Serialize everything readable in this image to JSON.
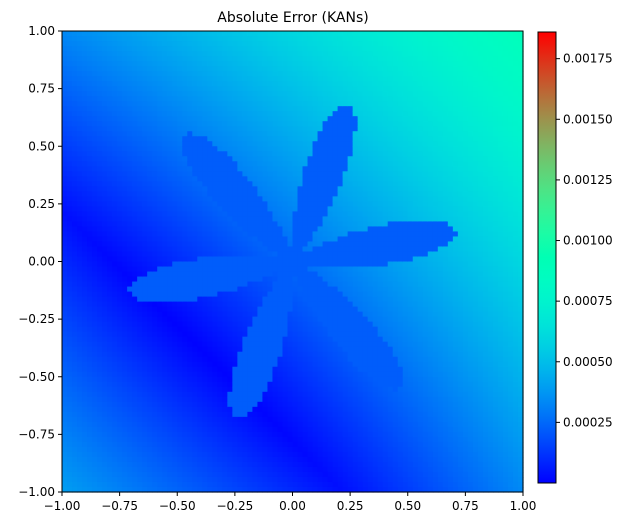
{
  "chart_data": {
    "type": "heatmap",
    "title": "Absolute Error (KANs)",
    "xlabel": "",
    "ylabel": "",
    "xlim": [
      -1.0,
      1.0
    ],
    "ylim": [
      -1.0,
      1.0
    ],
    "x_ticks": [
      "−1.00",
      "−0.75",
      "−0.50",
      "−0.25",
      "0.00",
      "0.25",
      "0.50",
      "0.75",
      "1.00"
    ],
    "y_ticks": [
      "−1.00",
      "−0.75",
      "−0.50",
      "−0.25",
      "0.00",
      "0.25",
      "0.50",
      "0.75",
      "1.00"
    ],
    "x_tick_values": [
      -1.0,
      -0.75,
      -0.5,
      -0.25,
      0.0,
      0.25,
      0.5,
      0.75,
      1.0
    ],
    "y_tick_values": [
      -1.0,
      -0.75,
      -0.5,
      -0.25,
      0.0,
      0.25,
      0.5,
      0.75,
      1.0
    ],
    "colormap": "rainbow",
    "colorbar": {
      "range": [
        0.0,
        0.00186
      ],
      "tick_values": [
        0.00025,
        0.0005,
        0.00075,
        0.001,
        0.00125,
        0.0015,
        0.00175
      ],
      "tick_labels": [
        "0.00025",
        "0.00050",
        "0.00075",
        "0.00100",
        "0.00125",
        "0.00150",
        "0.00175"
      ]
    },
    "field": {
      "description_values": "background error grows roughly linearly along direction (1,1), minimum along x+y=-0.8; inside a six-petal star region centered near origin the error is nearly constant",
      "corner_values": {
        "bottom_left": 0.00038,
        "bottom_right": 0.00036,
        "top_left": 0.00036,
        "top_right": 0.00085,
        "center": 0.00045
      },
      "star_region_value": 0.00022,
      "star_petals": 6,
      "star_max_radius": 0.72
    },
    "grid": false
  }
}
